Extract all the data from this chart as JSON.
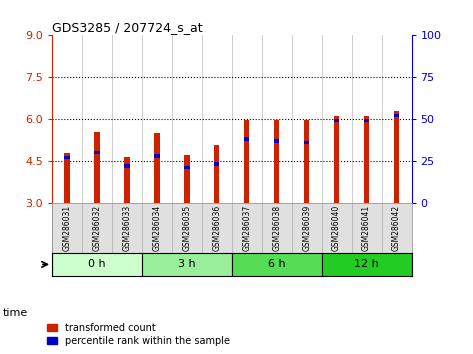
{
  "title": "GDS3285 / 207724_s_at",
  "samples": [
    "GSM286031",
    "GSM286032",
    "GSM286033",
    "GSM286034",
    "GSM286035",
    "GSM286036",
    "GSM286037",
    "GSM286038",
    "GSM286039",
    "GSM286040",
    "GSM286041",
    "GSM286042"
  ],
  "red_values": [
    4.78,
    5.52,
    4.62,
    5.5,
    4.72,
    5.08,
    5.95,
    5.95,
    5.95,
    6.12,
    6.12,
    6.28
  ],
  "blue_values": [
    27,
    30,
    22,
    28,
    21,
    23,
    38,
    37,
    36,
    49,
    49,
    52
  ],
  "ylim_left": [
    3,
    9
  ],
  "ylim_right": [
    0,
    100
  ],
  "yticks_left": [
    3,
    4.5,
    6,
    7.5,
    9
  ],
  "yticks_right": [
    0,
    25,
    50,
    75,
    100
  ],
  "time_groups": [
    {
      "label": "0 h",
      "count": 3,
      "color": "#ccffcc"
    },
    {
      "label": "3 h",
      "count": 3,
      "color": "#99ee99"
    },
    {
      "label": "6 h",
      "count": 3,
      "color": "#55dd55"
    },
    {
      "label": "12 h",
      "count": 3,
      "color": "#22cc22"
    }
  ],
  "bar_color": "#cc2200",
  "blue_color": "#0000cc",
  "bg_color": "#ffffff",
  "label_left_color": "#cc2200",
  "label_right_color": "#0000cc",
  "bar_width": 0.18,
  "time_label": "time",
  "legend_red": "transformed count",
  "legend_blue": "percentile rank within the sample"
}
